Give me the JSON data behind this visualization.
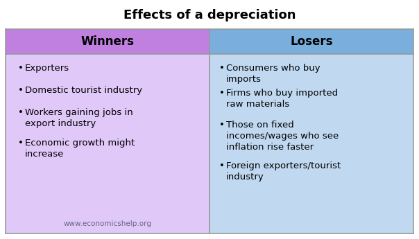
{
  "title": "Effects of a depreciation",
  "title_fontsize": 13,
  "title_fontweight": "bold",
  "col1_header": "Winners",
  "col2_header": "Losers",
  "header_fontsize": 12,
  "header_fontweight": "bold",
  "header_color1": "#C080E0",
  "header_color2": "#7AAEDD",
  "body_color1": "#E0C8F8",
  "body_color2": "#C0D8F0",
  "border_color": "#999999",
  "winners": [
    "Exporters",
    "Domestic tourist industry",
    "Workers gaining jobs in\nexport industry",
    "Economic growth might\nincrease"
  ],
  "losers": [
    "Consumers who buy\nimports",
    "Firms who buy imported\nraw materials",
    "Those on fixed\nincomes/wages who see\ninflation rise faster",
    "Foreign exporters/tourist\nindustry"
  ],
  "watermark": "www.economicshelp.org",
  "watermark_fontsize": 7.5,
  "text_fontsize": 9.5,
  "bg_color": "#FFFFFF",
  "fig_width": 6.04,
  "fig_height": 3.45,
  "dpi": 100
}
